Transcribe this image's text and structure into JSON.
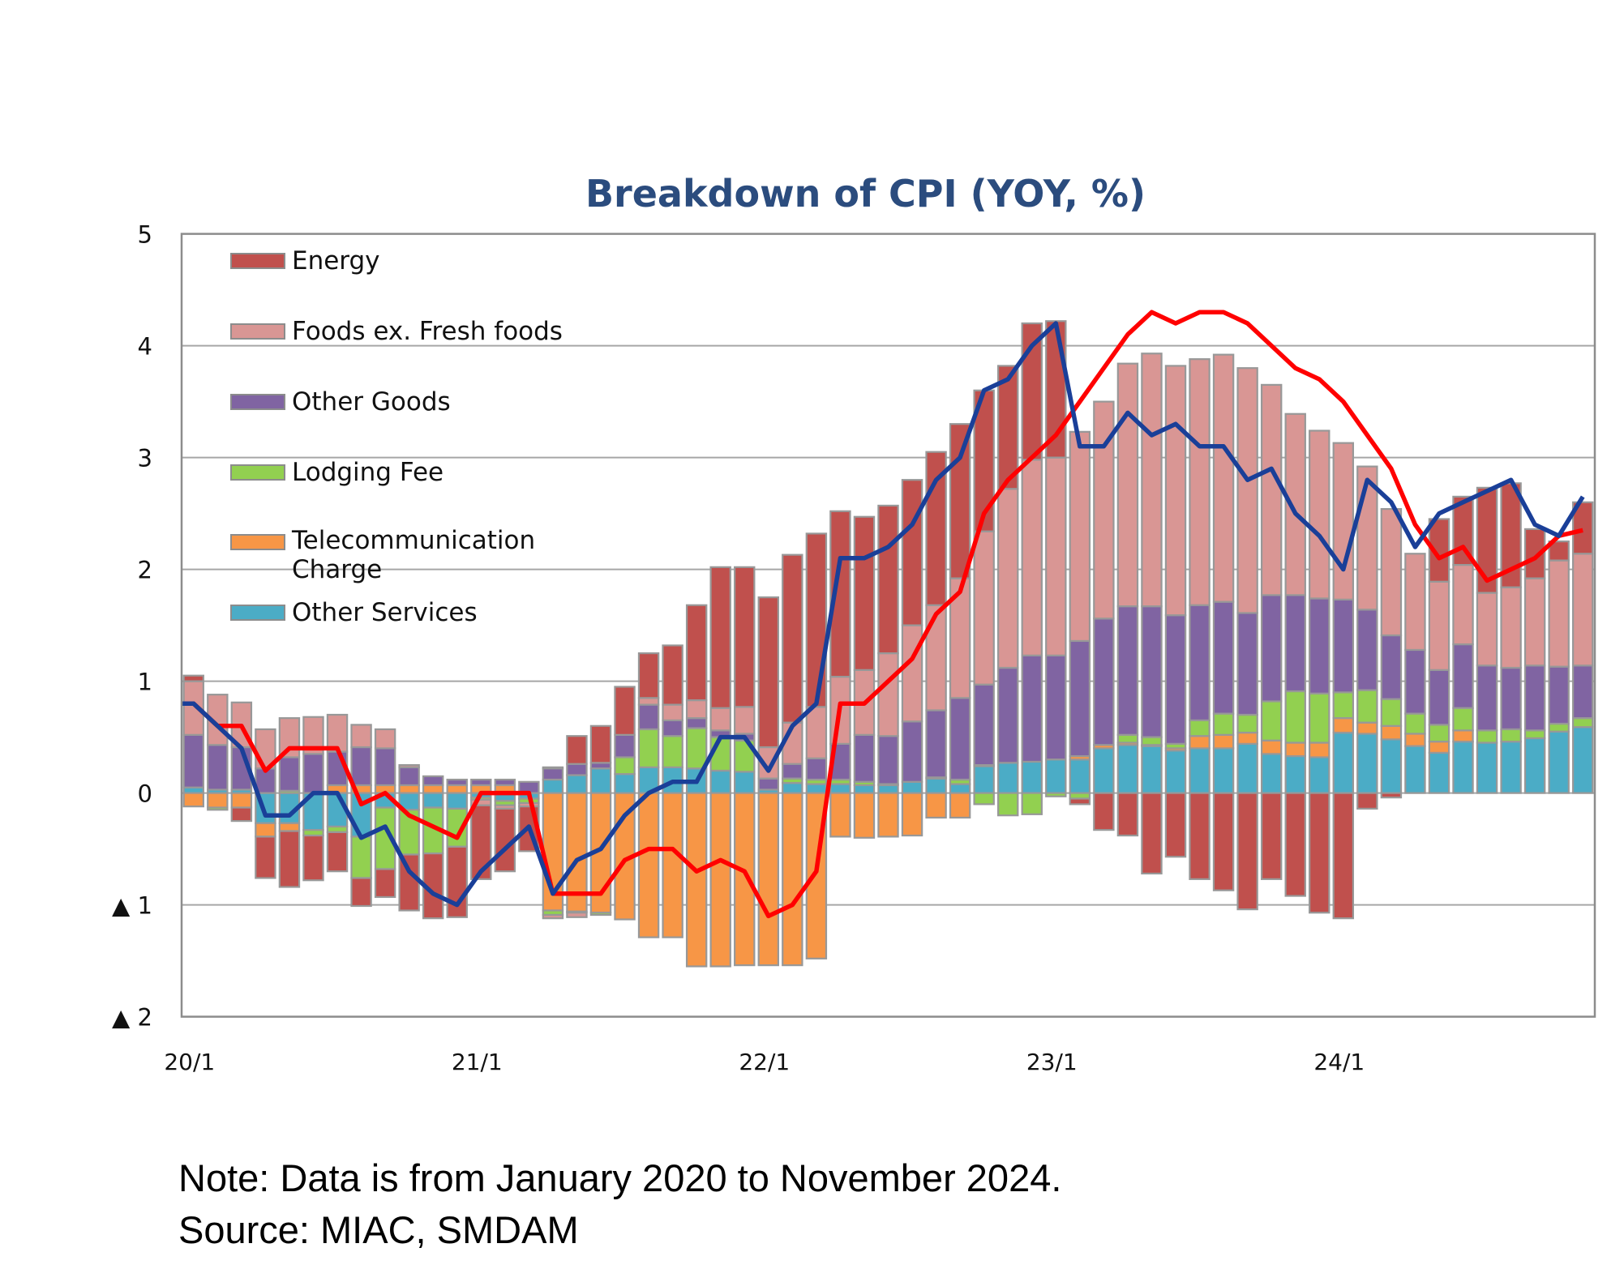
{
  "chart_data": {
    "type": "bar",
    "stacked": true,
    "title": "Breakdown of CPI (YOY, %)",
    "ylim": [
      -2,
      5
    ],
    "yticks": [
      5,
      4,
      3,
      2,
      1,
      0,
      -1,
      -2
    ],
    "ytick_labels": [
      "5",
      "4",
      "3",
      "2",
      "1",
      "0",
      "▲ 1",
      "▲ 2"
    ],
    "x_tick_labels": [
      {
        "index": 0,
        "label": "20/1"
      },
      {
        "index": 12,
        "label": "21/1"
      },
      {
        "index": 24,
        "label": "22/1"
      },
      {
        "index": 36,
        "label": "23/1"
      },
      {
        "index": 48,
        "label": "24/1"
      }
    ],
    "grid": true,
    "legend_placement": "top-left",
    "period": "2020-01 to 2024-11 (monthly)",
    "series": [
      {
        "name": "Other Services",
        "color": "#4BACC6",
        "values": [
          0.05,
          0.03,
          0.03,
          -0.27,
          -0.27,
          -0.33,
          -0.3,
          -0.39,
          -0.13,
          -0.15,
          -0.13,
          -0.14,
          -0.04,
          -0.07,
          -0.05,
          0.12,
          0.16,
          0.22,
          0.17,
          0.23,
          0.23,
          0.22,
          0.2,
          0.19,
          0.03,
          0.09,
          0.08,
          0.08,
          0.07,
          0.07,
          0.1,
          0.13,
          0.08,
          0.24,
          0.27,
          0.28,
          0.3,
          0.3,
          0.4,
          0.43,
          0.42,
          0.38,
          0.4,
          0.4,
          0.44,
          0.35,
          0.33,
          0.32,
          0.54,
          0.53,
          0.48,
          0.42,
          0.36,
          0.46,
          0.45,
          0.46,
          0.49,
          0.55,
          0.59
        ]
      },
      {
        "name": "Telecommunication Charge",
        "color": "#F79646",
        "values": [
          -0.12,
          -0.13,
          -0.13,
          -0.12,
          -0.07,
          0,
          0.07,
          0.07,
          0.07,
          0.07,
          0.07,
          0.07,
          0.07,
          0.07,
          0,
          -1.05,
          -1.06,
          -1.07,
          -1.13,
          -1.29,
          -1.29,
          -1.55,
          -1.55,
          -1.54,
          -1.54,
          -1.54,
          -1.48,
          -0.39,
          -0.4,
          -0.39,
          -0.38,
          -0.22,
          -0.22,
          0.01,
          0,
          0,
          0,
          0.03,
          0.03,
          0.02,
          0.01,
          0.02,
          0.11,
          0.12,
          0.1,
          0.12,
          0.12,
          0.13,
          0.13,
          0.1,
          0.12,
          0.11,
          0.1,
          0.1,
          0,
          0,
          0,
          0,
          0
        ]
      },
      {
        "name": "Lodging Fee",
        "color": "#92D050",
        "values": [
          0,
          -0.02,
          0,
          0,
          0.02,
          -0.05,
          -0.05,
          -0.37,
          -0.55,
          -0.4,
          -0.41,
          -0.34,
          -0.02,
          -0.04,
          -0.04,
          -0.04,
          -0.01,
          -0.02,
          0.15,
          0.34,
          0.28,
          0.36,
          0.3,
          0.28,
          0,
          0.04,
          0.04,
          0.04,
          0.03,
          0.01,
          0,
          0.01,
          0.04,
          -0.1,
          -0.2,
          -0.19,
          -0.03,
          -0.05,
          0,
          0.07,
          0.07,
          0.04,
          0.14,
          0.19,
          0.16,
          0.35,
          0.46,
          0.44,
          0.23,
          0.29,
          0.24,
          0.18,
          0.15,
          0.2,
          0.11,
          0.11,
          0.07,
          0.07,
          0.08
        ]
      },
      {
        "name": "Other Goods",
        "color": "#8064A2",
        "values": [
          0.47,
          0.4,
          0.38,
          0.22,
          0.3,
          0.35,
          0.3,
          0.34,
          0.33,
          0.16,
          0.08,
          0.05,
          0.05,
          0.05,
          0.1,
          0.1,
          0.1,
          0.05,
          0.2,
          0.22,
          0.14,
          0.09,
          0.06,
          0.06,
          0.1,
          0.13,
          0.19,
          0.32,
          0.42,
          0.43,
          0.54,
          0.6,
          0.73,
          0.72,
          0.85,
          0.95,
          0.93,
          1.03,
          1.13,
          1.15,
          1.17,
          1.15,
          1.03,
          1.0,
          0.91,
          0.95,
          0.86,
          0.85,
          0.83,
          0.72,
          0.57,
          0.57,
          0.49,
          0.57,
          0.58,
          0.55,
          0.58,
          0.51,
          0.47
        ]
      },
      {
        "name": "Foods ex. Fresh foods",
        "color": "#D99694",
        "values": [
          0.48,
          0.45,
          0.4,
          0.35,
          0.35,
          0.33,
          0.33,
          0.2,
          0.17,
          0.02,
          0,
          0,
          -0.05,
          -0.03,
          -0.03,
          -0.03,
          -0.04,
          0,
          0,
          0.06,
          0.14,
          0.16,
          0.2,
          0.24,
          0.28,
          0.37,
          0.46,
          0.6,
          0.58,
          0.74,
          0.86,
          0.94,
          1.07,
          1.37,
          1.6,
          1.75,
          1.77,
          1.87,
          1.94,
          2.17,
          2.26,
          2.23,
          2.2,
          2.21,
          2.19,
          1.88,
          1.62,
          1.5,
          1.4,
          1.28,
          1.13,
          0.86,
          0.79,
          0.71,
          0.65,
          0.72,
          0.78,
          0.95,
          1.0
        ]
      },
      {
        "name": "Energy",
        "color": "#C0504D",
        "values": [
          0.05,
          0,
          -0.12,
          -0.37,
          -0.5,
          -0.4,
          -0.35,
          -0.25,
          -0.25,
          -0.5,
          -0.58,
          -0.63,
          -0.66,
          -0.56,
          -0.4,
          0.01,
          0.25,
          0.33,
          0.43,
          0.4,
          0.53,
          0.85,
          1.26,
          1.25,
          1.34,
          1.5,
          1.55,
          1.48,
          1.37,
          1.32,
          1.3,
          1.37,
          1.38,
          1.26,
          1.1,
          1.22,
          1.22,
          -0.05,
          -0.33,
          -0.38,
          -0.72,
          -0.57,
          -0.77,
          -0.87,
          -1.04,
          -0.77,
          -0.92,
          -1.07,
          -1.12,
          -0.14,
          -0.04,
          0,
          0.56,
          0.61,
          0.94,
          0.93,
          0.44,
          0.17,
          0.46
        ]
      }
    ],
    "legend_order": [
      "Energy",
      "Foods ex. Fresh foods",
      "Other Goods",
      "Lodging Fee",
      "Telecommunication Charge",
      "Other Services"
    ],
    "lines": [
      {
        "id": "red-line",
        "color": "#FF0000",
        "values": [
          0.8,
          0.6,
          0.6,
          0.2,
          0.4,
          0.4,
          0.4,
          -0.1,
          0.0,
          -0.2,
          -0.3,
          -0.4,
          0.0,
          0.0,
          0.0,
          -0.9,
          -0.9,
          -0.9,
          -0.6,
          -0.5,
          -0.5,
          -0.7,
          -0.6,
          -0.7,
          -1.1,
          -1.0,
          -0.7,
          0.8,
          0.8,
          1.0,
          1.2,
          1.6,
          1.8,
          2.5,
          2.8,
          3.0,
          3.2,
          3.5,
          3.8,
          4.1,
          4.3,
          4.2,
          4.3,
          4.3,
          4.2,
          4.0,
          3.8,
          3.7,
          3.5,
          3.2,
          2.9,
          2.4,
          2.1,
          2.2,
          1.9,
          2.0,
          2.1,
          2.3,
          2.35
        ]
      },
      {
        "id": "blue-line",
        "color": "#1A3F98",
        "values": [
          0.8,
          0.6,
          0.4,
          -0.2,
          -0.2,
          0.0,
          0.0,
          -0.4,
          -0.3,
          -0.7,
          -0.9,
          -1.0,
          -0.7,
          -0.5,
          -0.3,
          -0.9,
          -0.6,
          -0.5,
          -0.2,
          0.0,
          0.1,
          0.1,
          0.5,
          0.5,
          0.2,
          0.6,
          0.8,
          2.1,
          2.1,
          2.2,
          2.4,
          2.8,
          3.0,
          3.6,
          3.7,
          4.0,
          4.2,
          3.1,
          3.1,
          3.4,
          3.2,
          3.3,
          3.1,
          3.1,
          2.8,
          2.9,
          2.5,
          2.3,
          2.0,
          2.8,
          2.6,
          2.2,
          2.5,
          2.6,
          2.7,
          2.8,
          2.4,
          2.3,
          2.65
        ]
      }
    ]
  },
  "legend": {
    "energy": "Energy",
    "foods": "Foods ex. Fresh foods",
    "other_goods": "Other Goods",
    "lodging": "Lodging Fee",
    "telecom": "Telecommunication Charge",
    "other_services": "Other Services"
  },
  "notes": {
    "note": "Note: Data is from January 2020 to November 2024.",
    "source": "Source: MIAC, SMDAM"
  }
}
